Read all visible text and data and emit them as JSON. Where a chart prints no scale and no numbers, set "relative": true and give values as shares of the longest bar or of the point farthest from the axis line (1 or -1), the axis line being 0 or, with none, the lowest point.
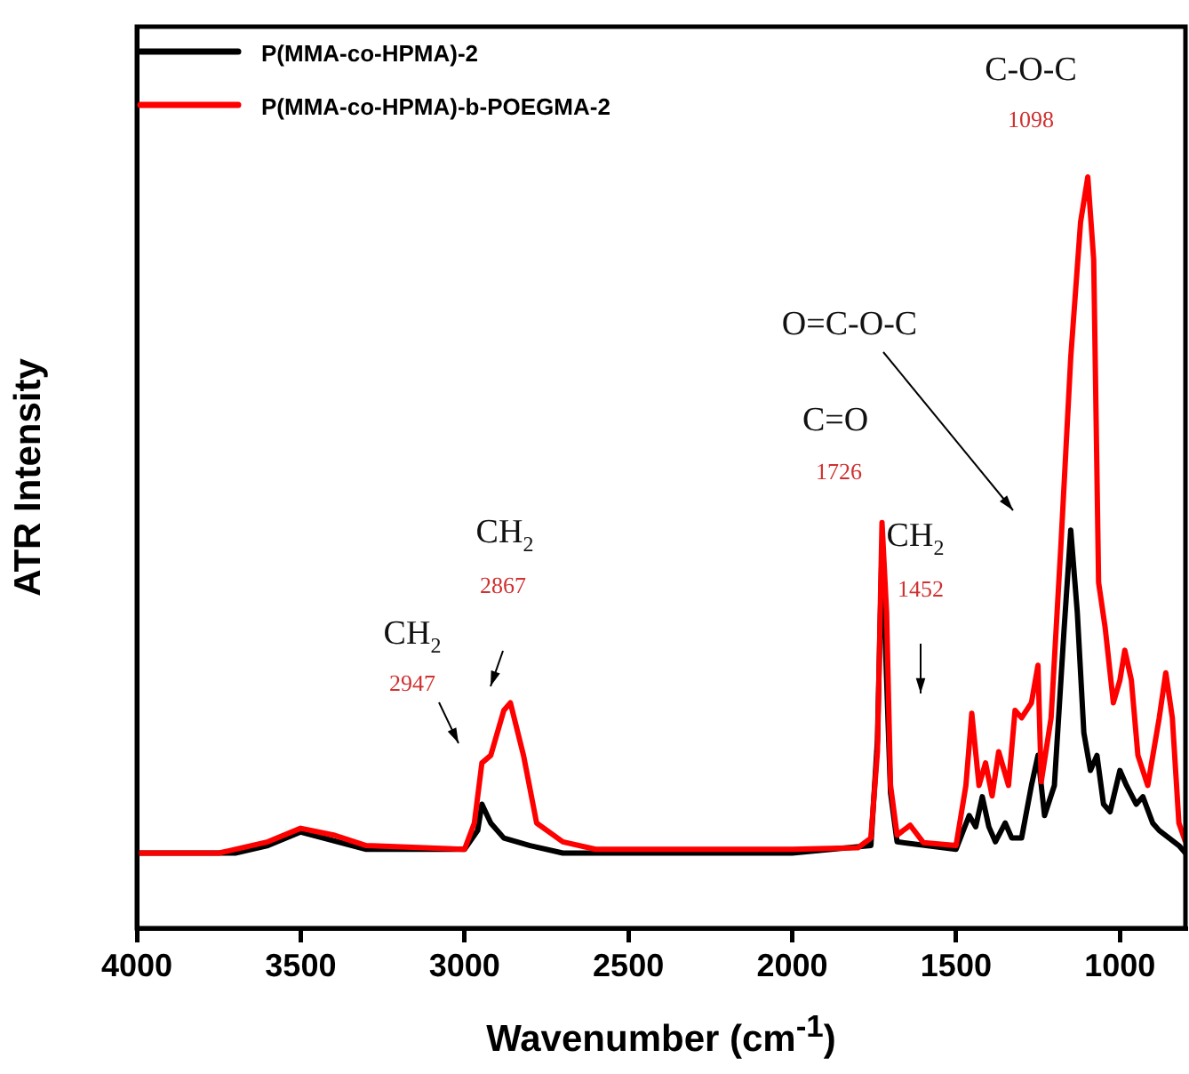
{
  "chart_data": {
    "type": "line",
    "relative": true,
    "xlabel": "Wavenumber (cm$^{-1}$)",
    "ylabel": "ATR Intensity",
    "xlim": [
      4000,
      800
    ],
    "xticks": [
      4000,
      3500,
      3000,
      2500,
      2000,
      1500,
      1000
    ],
    "grid": false,
    "legend": "top left",
    "tick_labels": "x",
    "annotations": [
      "CH$_{2}$",
      "2947",
      "CH$_{2}$",
      "2867",
      "C=O",
      "1726",
      "CH$_{2}$",
      "1452",
      "O=C-O-C",
      "C-O-C",
      "1098"
    ],
    "series": [
      {
        "name": "P(MMA-co-HPMA)-2",
        "color": "#000000",
        "x": [
          4000,
          3700,
          3600,
          3500,
          3300,
          3000,
          2960,
          2947,
          2920,
          2880,
          2800,
          2700,
          2000,
          1760,
          1740,
          1726,
          1700,
          1680,
          1500,
          1460,
          1440,
          1420,
          1400,
          1380,
          1350,
          1330,
          1300,
          1270,
          1250,
          1230,
          1200,
          1170,
          1150,
          1130,
          1110,
          1090,
          1070,
          1050,
          1030,
          1000,
          980,
          950,
          930,
          900,
          880,
          850,
          820,
          800
        ],
        "values": [
          0.1,
          0.1,
          0.11,
          0.128,
          0.105,
          0.105,
          0.13,
          0.165,
          0.14,
          0.12,
          0.11,
          0.1,
          0.1,
          0.11,
          0.25,
          0.51,
          0.18,
          0.115,
          0.105,
          0.15,
          0.135,
          0.175,
          0.135,
          0.115,
          0.14,
          0.12,
          0.12,
          0.19,
          0.23,
          0.15,
          0.19,
          0.4,
          0.53,
          0.42,
          0.26,
          0.21,
          0.23,
          0.165,
          0.155,
          0.21,
          0.19,
          0.165,
          0.175,
          0.14,
          0.13,
          0.12,
          0.11,
          0.1
        ]
      },
      {
        "name": "P(MMA-co-HPMA)-b-POEGMA-2",
        "color": "#ff0000",
        "x": [
          4000,
          3750,
          3600,
          3500,
          3400,
          3300,
          3000,
          2970,
          2947,
          2920,
          2880,
          2860,
          2820,
          2780,
          2700,
          2600,
          2000,
          1800,
          1760,
          1740,
          1726,
          1712,
          1700,
          1680,
          1640,
          1600,
          1500,
          1470,
          1452,
          1430,
          1410,
          1390,
          1370,
          1340,
          1320,
          1300,
          1270,
          1250,
          1240,
          1210,
          1180,
          1150,
          1120,
          1098,
          1080,
          1065,
          1045,
          1020,
          1000,
          985,
          965,
          945,
          915,
          880,
          860,
          840,
          820,
          800
        ],
        "values": [
          0.1,
          0.1,
          0.115,
          0.133,
          0.124,
          0.11,
          0.105,
          0.14,
          0.22,
          0.23,
          0.29,
          0.3,
          0.23,
          0.14,
          0.115,
          0.105,
          0.105,
          0.107,
          0.12,
          0.235,
          0.54,
          0.42,
          0.19,
          0.124,
          0.137,
          0.114,
          0.11,
          0.19,
          0.286,
          0.19,
          0.22,
          0.176,
          0.235,
          0.19,
          0.29,
          0.28,
          0.3,
          0.35,
          0.195,
          0.28,
          0.51,
          0.76,
          0.94,
          1,
          0.89,
          0.46,
          0.4,
          0.3,
          0.33,
          0.37,
          0.33,
          0.23,
          0.19,
          0.28,
          0.34,
          0.28,
          0.14,
          0.115
        ]
      }
    ]
  }
}
